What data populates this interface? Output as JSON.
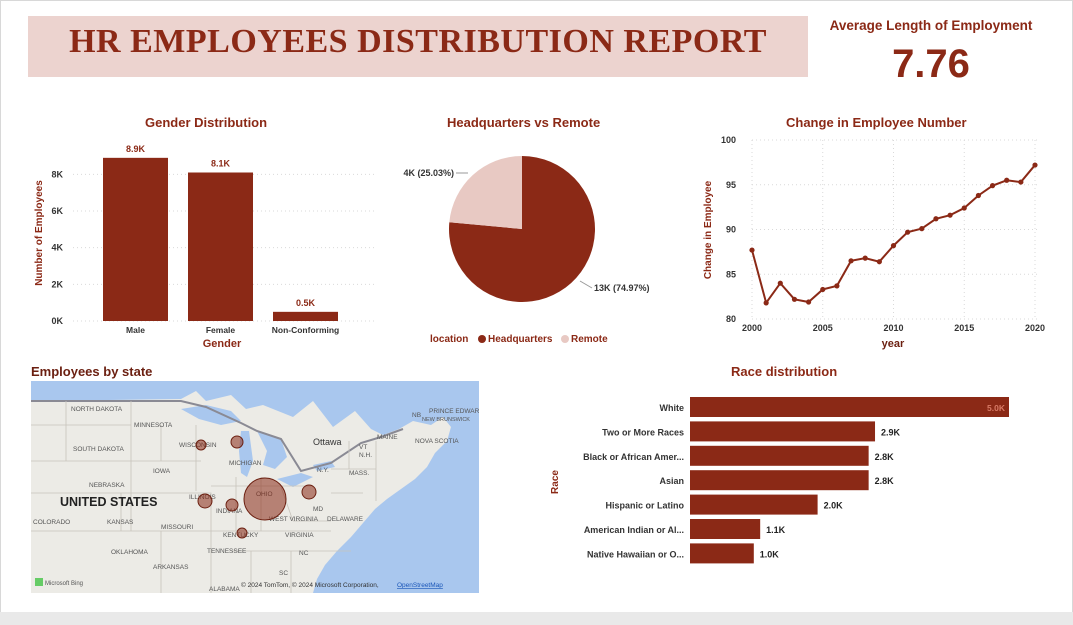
{
  "title": "HR EMPLOYEES DISTRIBUTION REPORT",
  "kpi": {
    "label": "Average Length of Employment",
    "value": "7.76"
  },
  "colors": {
    "primary": "#8b2916",
    "light": "#e8c9c3",
    "title_bg": "#ecd3cf",
    "map_water": "#a9c7ee",
    "map_land": "#ecebe6"
  },
  "chart_data": [
    {
      "type": "bar",
      "title": "Gender Distribution",
      "xlabel": "Gender",
      "ylabel": "Number of Employees",
      "categories": [
        "Male",
        "Female",
        "Non-Conforming"
      ],
      "values": [
        8900,
        8100,
        500
      ],
      "data_labels": [
        "8.9K",
        "8.1K",
        "0.5K"
      ],
      "yticks": [
        "0K",
        "2K",
        "4K",
        "6K",
        "8K"
      ],
      "ylim": [
        0,
        9600
      ]
    },
    {
      "type": "pie",
      "title": "Headquarters vs Remote",
      "legend_title": "location",
      "legend_position": "bottom",
      "categories": [
        "Headquarters",
        "Remote"
      ],
      "values": [
        13000,
        4000
      ],
      "percent": [
        74.97,
        25.03
      ],
      "data_labels": [
        "13K (74.97%)",
        "4K (25.03%)"
      ]
    },
    {
      "type": "line",
      "title": "Change in Employee Number",
      "xlabel": "year",
      "ylabel": "Change in Employee",
      "x": [
        2000,
        2001,
        2002,
        2003,
        2004,
        2005,
        2006,
        2007,
        2008,
        2009,
        2010,
        2011,
        2012,
        2013,
        2014,
        2015,
        2016,
        2017,
        2018,
        2019,
        2020
      ],
      "y": [
        87.7,
        81.8,
        84.0,
        82.2,
        81.9,
        83.3,
        83.7,
        86.5,
        86.8,
        86.4,
        88.2,
        89.7,
        90.1,
        91.2,
        91.6,
        92.4,
        93.8,
        94.9,
        95.5,
        95.3,
        97.2
      ],
      "xticks": [
        "2000",
        "2005",
        "2010",
        "2015",
        "2020"
      ],
      "yticks": [
        "80",
        "85",
        "90",
        "95",
        "100"
      ],
      "xlim": [
        2000,
        2020
      ],
      "ylim": [
        80,
        100
      ],
      "grid": true
    },
    {
      "type": "bar",
      "orientation": "horizontal",
      "title": "Race distribution",
      "ylabel": "Race",
      "categories": [
        "White",
        "Two or More Races",
        "Black or African Amer...",
        "Asian",
        "Hispanic or Latino",
        "American Indian or Al...",
        "Native Hawaiian or O..."
      ],
      "values": [
        5000,
        2900,
        2800,
        2800,
        2000,
        1100,
        1000
      ],
      "data_labels": [
        "5.0K",
        "2.9K",
        "2.8K",
        "2.8K",
        "2.0K",
        "1.1K",
        "1.0K"
      ],
      "xlim": [
        0,
        5000
      ]
    }
  ],
  "map": {
    "title": "Employees by state",
    "country_label": "UNITED STATES",
    "labels": [
      "NORTH DAKOTA",
      "MINNESOTA",
      "SOUTH DAKOTA",
      "WISCONSIN",
      "MICHIGAN",
      "IOWA",
      "NEBRASKA",
      "ILLINOIS",
      "INDIANA",
      "OHIO",
      "KANSAS",
      "MISSOURI",
      "COLORADO",
      "KENTUCKY",
      "WEST VIRGINIA",
      "VIRGINIA",
      "OKLAHOMA",
      "TENNESSEE",
      "ARKANSAS",
      "NC",
      "SC",
      "ALABAMA",
      "N.Y.",
      "MASS.",
      "MAINE",
      "NB",
      "NEW BRUNSWICK",
      "PRINCE EDWARD ISLAND",
      "NOVA SCOTIA",
      "N.H.",
      "VT",
      "MD",
      "DELAWARE",
      "Ottawa"
    ],
    "attribution": "© 2024 TomTom, © 2024 Microsoft Corporation,",
    "attribution_link": "OpenStreetMap",
    "brand": "Microsoft Bing"
  }
}
